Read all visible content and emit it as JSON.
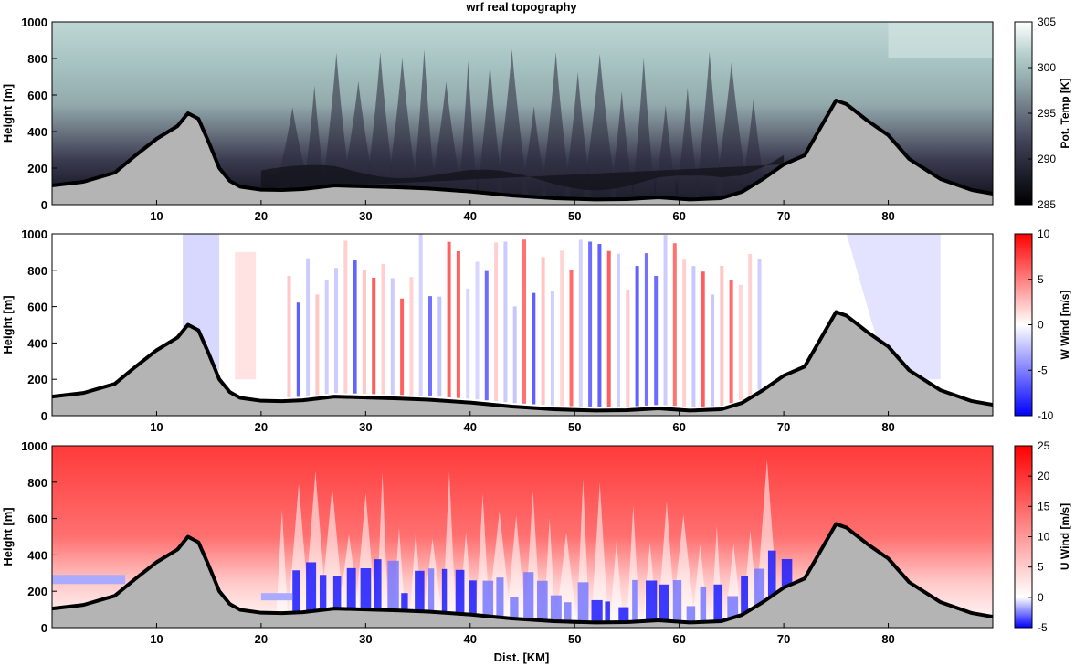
{
  "title": "wrf real topography",
  "xlabel": "Dist. [KM]",
  "chart_data": [
    {
      "type": "heatmap",
      "field": "potential_temperature",
      "ylabel": "Height [m]",
      "colorbar_label": "Pot. Temp [K]",
      "xlim": [
        0,
        90
      ],
      "ylim": [
        0,
        1000
      ],
      "xticks": [
        10,
        20,
        30,
        40,
        50,
        60,
        70,
        80
      ],
      "yticks": [
        0,
        200,
        400,
        600,
        800,
        1000
      ],
      "clim": [
        285,
        305
      ],
      "cticks": [
        285,
        290,
        295,
        300,
        305
      ],
      "colormap": "bone",
      "colors": [
        "#000000",
        "#2b2b3d",
        "#545468",
        "#7f8f95",
        "#a9c2c2",
        "#ffffff"
      ]
    },
    {
      "type": "heatmap",
      "field": "w_wind",
      "ylabel": "Height [m]",
      "colorbar_label": "W Wind [m/s]",
      "xlim": [
        0,
        90
      ],
      "ylim": [
        0,
        1000
      ],
      "xticks": [
        10,
        20,
        30,
        40,
        50,
        60,
        70,
        80
      ],
      "yticks": [
        0,
        200,
        400,
        600,
        800,
        1000
      ],
      "clim": [
        -10,
        10
      ],
      "cticks": [
        -10,
        -5,
        0,
        5,
        10
      ],
      "colormap": "blue-white-red",
      "colors": [
        "#0000ff",
        "#ffffff",
        "#ff0000"
      ]
    },
    {
      "type": "heatmap",
      "field": "u_wind",
      "ylabel": "Height [m]",
      "colorbar_label": "U Wind [m/s]",
      "xlim": [
        0,
        90
      ],
      "ylim": [
        0,
        1000
      ],
      "xticks": [
        10,
        20,
        30,
        40,
        50,
        60,
        70,
        80
      ],
      "yticks": [
        0,
        200,
        400,
        600,
        800,
        1000
      ],
      "clim": [
        -5,
        25
      ],
      "cticks": [
        -5,
        0,
        5,
        10,
        15,
        20,
        25
      ],
      "colormap": "blue-white-red",
      "colors": [
        "#0000ff",
        "#ffffff",
        "#ff0000"
      ]
    }
  ],
  "terrain": {
    "x": [
      0,
      3,
      6,
      8,
      10,
      12,
      13,
      14,
      15,
      16,
      17,
      18,
      20,
      22,
      24,
      27,
      30,
      33,
      36,
      40,
      44,
      48,
      52,
      55,
      58,
      61,
      64,
      66,
      68,
      70,
      72,
      74,
      75,
      76,
      78,
      80,
      82,
      85,
      88,
      90
    ],
    "y": [
      105,
      125,
      175,
      270,
      360,
      430,
      500,
      470,
      340,
      200,
      130,
      98,
      82,
      80,
      85,
      105,
      100,
      95,
      88,
      72,
      50,
      35,
      28,
      30,
      40,
      28,
      35,
      70,
      140,
      220,
      270,
      470,
      570,
      550,
      460,
      380,
      250,
      140,
      80,
      60
    ],
    "fill": "#b4b4b4",
    "line": "#000000"
  }
}
